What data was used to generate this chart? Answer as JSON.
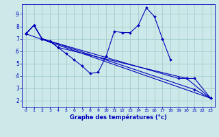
{
  "title": "Graphe des températures (°c)",
  "bg_color": "#cce8e8",
  "grid_color": "#9cc8c8",
  "line_color": "#0000bb",
  "xlim": [
    -0.5,
    23.5
  ],
  "ylim": [
    1.5,
    9.8
  ],
  "xticks": [
    0,
    1,
    2,
    3,
    4,
    5,
    6,
    7,
    8,
    9,
    10,
    11,
    12,
    13,
    14,
    15,
    16,
    17,
    18,
    19,
    20,
    21,
    22,
    23
  ],
  "yticks": [
    2,
    3,
    4,
    5,
    6,
    7,
    8,
    9
  ],
  "line1_x": [
    0,
    1,
    2,
    3,
    4,
    5,
    6,
    7,
    8,
    9,
    10,
    11,
    12,
    13,
    14,
    15,
    16,
    17,
    18
  ],
  "line1_y": [
    7.4,
    8.1,
    7.0,
    6.8,
    6.3,
    5.8,
    5.3,
    4.8,
    4.2,
    4.3,
    5.6,
    7.6,
    7.5,
    7.5,
    8.1,
    9.5,
    8.8,
    7.0,
    5.3
  ],
  "line2_x": [
    0,
    23
  ],
  "line2_y": [
    7.4,
    2.2
  ],
  "line3_x": [
    0,
    1,
    2,
    3,
    19,
    20,
    23
  ],
  "line3_y": [
    7.4,
    8.1,
    7.0,
    6.8,
    3.8,
    3.8,
    2.2
  ],
  "line4_x": [
    0,
    1,
    2,
    3,
    21,
    23
  ],
  "line4_y": [
    7.4,
    8.1,
    7.0,
    6.8,
    2.9,
    2.2
  ],
  "line5_x": [
    0,
    1,
    2,
    3,
    4,
    20,
    21,
    23
  ],
  "line5_y": [
    7.4,
    8.1,
    7.0,
    6.8,
    6.3,
    3.8,
    3.8,
    2.2
  ]
}
